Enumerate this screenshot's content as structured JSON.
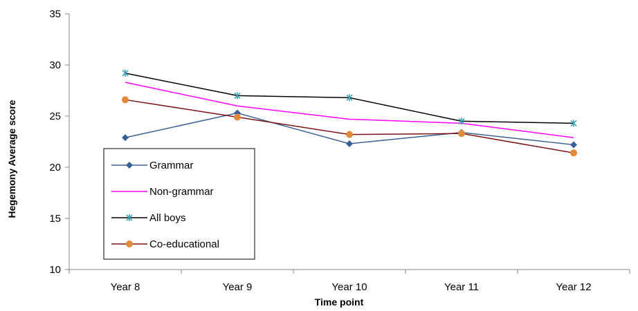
{
  "chart_data": {
    "type": "line",
    "title": "",
    "xlabel": "Time point",
    "ylabel": "Hegemony Average score",
    "categories": [
      "Year 8",
      "Year 9",
      "Year 10",
      "Year 11",
      "Year 12"
    ],
    "ylim": [
      10,
      35
    ],
    "yticks": [
      "10",
      "15",
      "20",
      "25",
      "30",
      "35"
    ],
    "grid": false,
    "legend_position": "left",
    "series": [
      {
        "name": "Grammar",
        "values": [
          22.9,
          25.3,
          22.3,
          23.4,
          22.2
        ],
        "color": "#3a5f96",
        "marker": "diamond"
      },
      {
        "name": "Non-grammar",
        "values": [
          28.3,
          26.0,
          24.7,
          24.3,
          22.9
        ],
        "color": "#ff00ff",
        "marker": "none"
      },
      {
        "name": "All boys",
        "values": [
          29.2,
          27.0,
          26.8,
          24.5,
          24.3
        ],
        "color": "#000000",
        "marker": "star",
        "marker_color": "#3aa6b8"
      },
      {
        "name": "Co-educational",
        "values": [
          26.6,
          24.9,
          23.2,
          23.3,
          21.4
        ],
        "color": "#7b1416",
        "marker": "circle",
        "marker_color": "#e08a3c"
      }
    ]
  }
}
